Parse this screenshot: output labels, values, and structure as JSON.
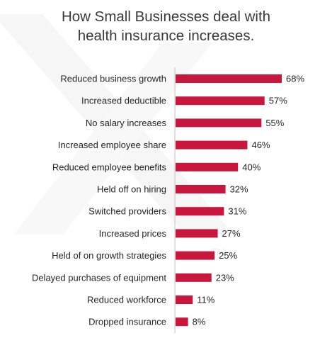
{
  "chart_data": {
    "type": "bar",
    "orientation": "horizontal",
    "title_lines": [
      "How Small Businesses deal with",
      "health insurance increases."
    ],
    "categories": [
      "Reduced business growth",
      "Increased deductible",
      "No salary increases",
      "Increased employee share",
      "Reduced employee benefits",
      "Held off on hiring",
      "Switched providers",
      "Increased prices",
      "Held of on growth strategies",
      "Delayed purchases of equipment",
      "Reduced workforce",
      "Dropped insurance"
    ],
    "values": [
      68,
      57,
      55,
      46,
      40,
      32,
      31,
      27,
      25,
      23,
      11,
      8
    ],
    "value_labels": [
      "68%",
      "57%",
      "55%",
      "46%",
      "40%",
      "32%",
      "31%",
      "27%",
      "25%",
      "23%",
      "11%",
      "8%"
    ],
    "xlim": [
      0,
      68
    ],
    "grid": false,
    "legend": "none",
    "colors": {
      "bar": "#c8163d",
      "axis": "#bfbfbf",
      "title": "#3a3a3a",
      "text": "#262626"
    }
  }
}
